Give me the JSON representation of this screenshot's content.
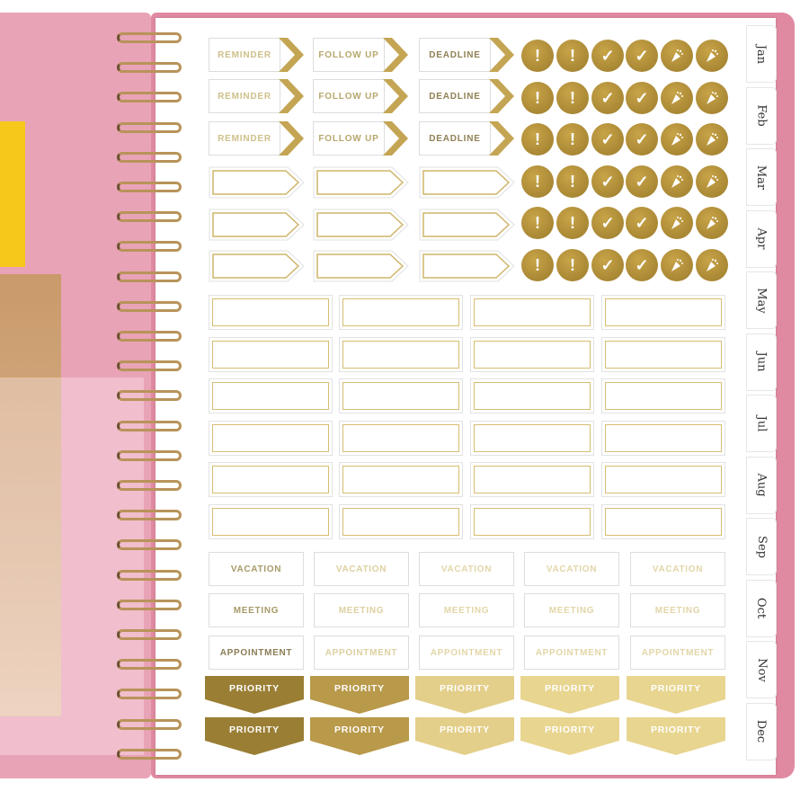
{
  "tabs": [
    "Jan",
    "Feb",
    "Mar",
    "Apr",
    "May",
    "Jun",
    "Jul",
    "Aug",
    "Sep",
    "Oct",
    "Nov",
    "Dec"
  ],
  "arrow_labels": [
    "REMINDER",
    "FOLLOW UP",
    "DEADLINE"
  ],
  "arrow_text_colors": [
    "#cfc08a",
    "#b7a86e",
    "#8f8155"
  ],
  "circle_icons": [
    "exclamation",
    "exclamation",
    "check",
    "check",
    "party-popper",
    "party-popper"
  ],
  "word_labels": [
    "VACATION",
    "MEETING",
    "APPOINTMENT"
  ],
  "word_colors": [
    "#a89a68",
    "#ddd0a0",
    "#e2d6a8",
    "#e2d6a8",
    "#e2d6a8"
  ],
  "priority_label": "PRIORITY",
  "priority_colors": [
    "#9a7e34",
    "#b9994a",
    "#e3cf8a",
    "#e8d590",
    "#e8d590"
  ],
  "colors": {
    "gold": "#b8963f",
    "cover_pink": "#e9a3b6"
  }
}
